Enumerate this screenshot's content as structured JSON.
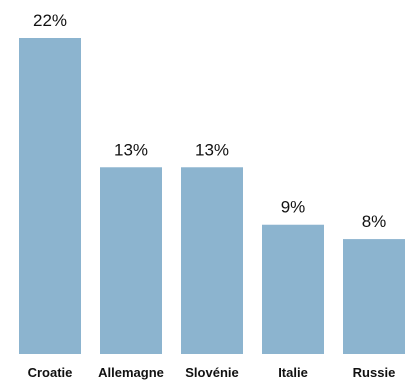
{
  "chart_data": {
    "type": "bar",
    "categories": [
      "Croatie",
      "Allemagne",
      "Slovénie",
      "Italie",
      "Russie"
    ],
    "values": [
      22,
      13,
      13,
      9,
      8
    ],
    "value_labels": [
      "22%",
      "13%",
      "13%",
      "9%",
      "8%"
    ],
    "title": "",
    "xlabel": "",
    "ylabel": "",
    "ylim": [
      0,
      22
    ],
    "grid": false,
    "bar_color": "#8cb4cf"
  }
}
